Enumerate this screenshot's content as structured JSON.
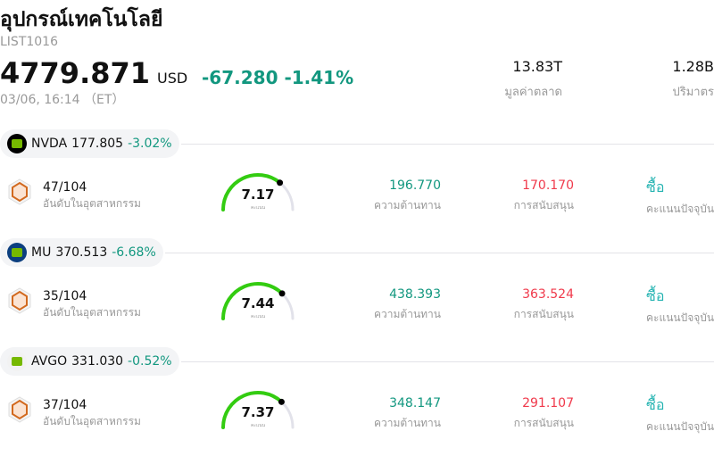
{
  "header": {
    "title": "อุปกรณ์เทคโนโลยี",
    "code": "LIST1016",
    "price": "4779.871",
    "currency": "USD",
    "change": "-67.280",
    "change_pct": "-1.41%",
    "time": "03/06, 16:14 （ET）",
    "market_cap": {
      "value": "13.83T",
      "label": "มูลค่าตลาด"
    },
    "volume": {
      "value": "1.28B",
      "label": "ปริมาตร"
    }
  },
  "colors": {
    "negative": "#12977f",
    "support": "#f0394b",
    "gauge": "#33cc11",
    "buy": "#24b3b1"
  },
  "stocks": [
    {
      "ticker": "NVDA",
      "price": "177.805",
      "change_pct": "-3.02%",
      "logo_color": "#000000",
      "logo_icon": "nvidia-logo",
      "rank": "47/104",
      "rank_label": "อันดับในอุตสาหกรรม",
      "score": "7.17",
      "score_label": "คะแนน",
      "resistance": "196.770",
      "resistance_label": "ความต้านทาน",
      "support": "170.170",
      "support_label": "การสนับสนุน",
      "rating": "ซื้อ",
      "rating_label": "คะแนนปัจจุบัน"
    },
    {
      "ticker": "MU",
      "price": "370.513",
      "change_pct": "-6.68%",
      "logo_color": "#0c3f7f",
      "logo_icon": "micron-logo",
      "rank": "35/104",
      "rank_label": "อันดับในอุตสาหกรรม",
      "score": "7.44",
      "score_label": "คะแนน",
      "resistance": "438.393",
      "resistance_label": "ความต้านทาน",
      "support": "363.524",
      "support_label": "การสนับสนุน",
      "rating": "ซื้อ",
      "rating_label": "คะแนนปัจจุบัน"
    },
    {
      "ticker": "AVGO",
      "price": "331.030",
      "change_pct": "-0.52%",
      "logo_color": "#f2f2f2",
      "logo_icon": "broadcom-logo",
      "rank": "37/104",
      "rank_label": "อันดับในอุตสาหกรรม",
      "score": "7.37",
      "score_label": "คะแนน",
      "resistance": "348.147",
      "resistance_label": "ความต้านทาน",
      "support": "291.107",
      "support_label": "การสนับสนุน",
      "rating": "ซื้อ",
      "rating_label": "คะแนนปัจจุบัน"
    }
  ]
}
